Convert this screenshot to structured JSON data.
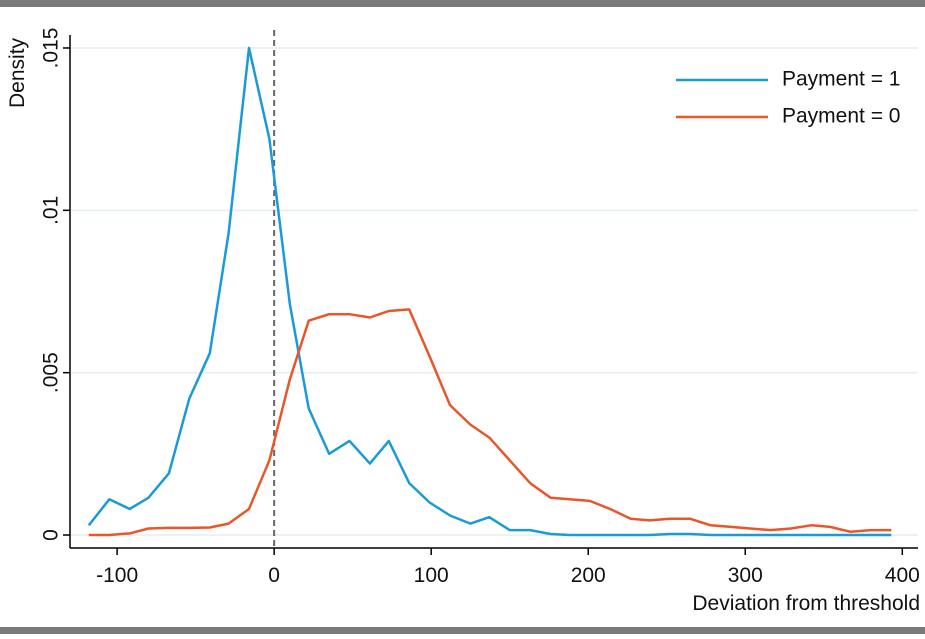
{
  "chart_data": {
    "type": "line",
    "x_label": "Deviation from threshold",
    "y_label": "Density",
    "x": [
      -118,
      -105,
      -92,
      -80,
      -67,
      -54,
      -41,
      -29,
      -16,
      -3,
      10,
      22,
      35,
      48,
      61,
      73,
      86,
      99,
      112,
      125,
      137,
      150,
      163,
      176,
      188,
      201,
      214,
      227,
      239,
      252,
      265,
      278,
      291,
      303,
      316,
      329,
      342,
      354,
      367,
      380,
      393
    ],
    "series": [
      {
        "name": "Payment = 1",
        "color": "#1a9ad6",
        "values": [
          0.0003,
          0.0011,
          0.0008,
          0.00115,
          0.0019,
          0.0042,
          0.0056,
          0.0093,
          0.015,
          0.0122,
          0.0071,
          0.0039,
          0.0025,
          0.0029,
          0.0022,
          0.0029,
          0.0016,
          0.001,
          0.0006,
          0.00035,
          0.00055,
          0.00015,
          0.00015,
          3e-05,
          0,
          0,
          0,
          0,
          0,
          3e-05,
          3e-05,
          0,
          0,
          0,
          0,
          0,
          0,
          0,
          0,
          0,
          0
        ]
      },
      {
        "name": "Payment = 0",
        "color": "#e8562a",
        "values": [
          0,
          0,
          5e-05,
          0.0002,
          0.00022,
          0.00022,
          0.00023,
          0.00035,
          0.0008,
          0.0023,
          0.0048,
          0.0066,
          0.0068,
          0.0068,
          0.0067,
          0.0069,
          0.00695,
          0.0055,
          0.004,
          0.0034,
          0.003,
          0.0023,
          0.0016,
          0.00115,
          0.0011,
          0.00105,
          0.0008,
          0.0005,
          0.00045,
          0.0005,
          0.0005,
          0.0003,
          0.00025,
          0.0002,
          0.00015,
          0.0002,
          0.0003,
          0.00025,
          0.0001,
          0.00015,
          0.00015
        ]
      }
    ],
    "xlim": [
      -130,
      410
    ],
    "ylim": [
      -0.0004,
      0.0154
    ],
    "xticks": [
      -100,
      0,
      100,
      200,
      300,
      400
    ],
    "yticks": [
      0,
      {
        "value": 0.005,
        "label": ".005"
      },
      {
        "value": 0.01,
        "label": ".01"
      },
      {
        "value": 0.015,
        "label": ".015"
      }
    ],
    "reference_line": 0,
    "grid": true,
    "legend": "top-right"
  }
}
